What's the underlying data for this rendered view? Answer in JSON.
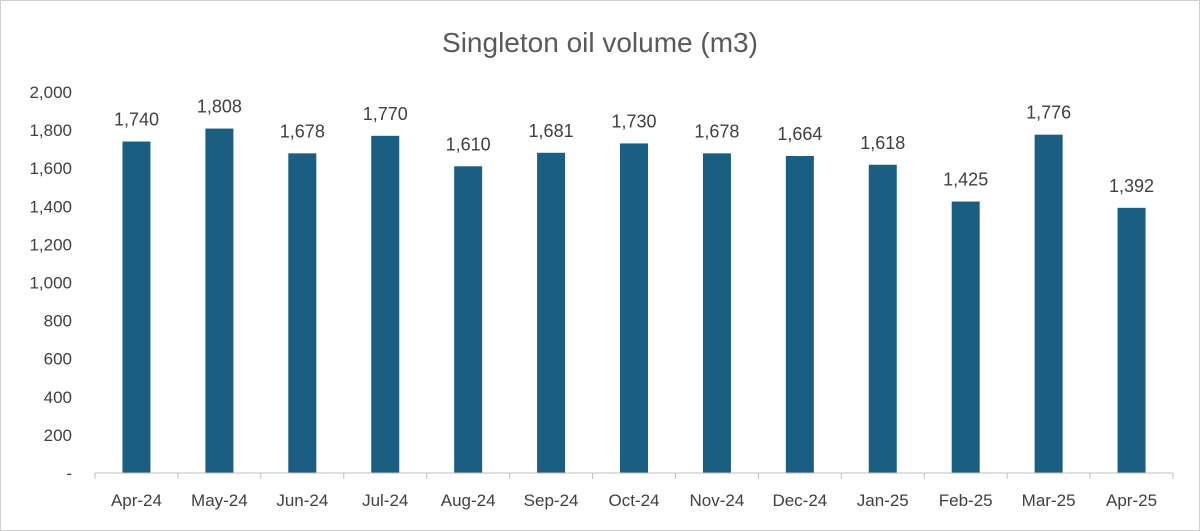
{
  "chart_data": {
    "type": "bar",
    "title": "Singleton oil volume (m3)",
    "xlabel": "",
    "ylabel": "",
    "categories": [
      "Apr-24",
      "May-24",
      "Jun-24",
      "Jul-24",
      "Aug-24",
      "Sep-24",
      "Oct-24",
      "Nov-24",
      "Dec-24",
      "Jan-25",
      "Feb-25",
      "Mar-25",
      "Apr-25"
    ],
    "values": [
      1740,
      1808,
      1678,
      1770,
      1610,
      1681,
      1730,
      1678,
      1664,
      1618,
      1425,
      1776,
      1392
    ],
    "value_labels": [
      "1,740",
      "1,808",
      "1,678",
      "1,770",
      "1,610",
      "1,681",
      "1,730",
      "1,678",
      "1,664",
      "1,618",
      "1,425",
      "1,776",
      "1,392"
    ],
    "ylim": [
      0,
      2000
    ],
    "y_ticks": [
      0,
      200,
      400,
      600,
      800,
      1000,
      1200,
      1400,
      1600,
      1800,
      2000
    ],
    "y_tick_labels": [
      "-",
      "200",
      "400",
      "600",
      "800",
      "1,000",
      "1,200",
      "1,400",
      "1,600",
      "1,800",
      "2,000"
    ],
    "grid": false,
    "legend": "none",
    "bar_color": "#1a5e82"
  }
}
